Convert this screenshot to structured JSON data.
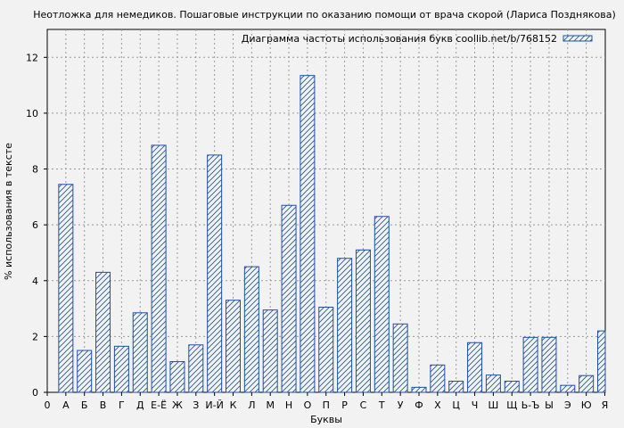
{
  "chart_data": {
    "type": "bar",
    "title": "Неотложка для немедиков. Пошаговые инструкции по оказанию помощи от врача скорой (Лариса Позднякова)",
    "legend": "Диаграмма частоты использования букв coollib.net/b/768152",
    "legend_position": "top-right",
    "xlabel": "Буквы",
    "ylabel": "% использования в тексте",
    "x_first_tick": "0",
    "categories": [
      "А",
      "Б",
      "В",
      "Г",
      "Д",
      "Е-Ё",
      "Ж",
      "З",
      "И-Й",
      "К",
      "Л",
      "М",
      "Н",
      "О",
      "П",
      "Р",
      "С",
      "Т",
      "У",
      "Ф",
      "Х",
      "Ц",
      "Ч",
      "Ш",
      "Щ",
      "Ь-Ъ",
      "Ы",
      "Э",
      "Ю",
      "Я"
    ],
    "values": [
      7.45,
      1.5,
      4.3,
      1.65,
      2.85,
      8.85,
      1.1,
      1.7,
      8.5,
      3.3,
      4.5,
      2.95,
      6.7,
      11.35,
      3.05,
      4.8,
      5.1,
      6.3,
      2.45,
      0.18,
      0.98,
      0.4,
      1.78,
      0.62,
      0.4,
      1.97,
      1.97,
      0.25,
      0.6,
      2.2
    ],
    "ylim": [
      0,
      13
    ],
    "yticks": [
      0,
      2,
      4,
      6,
      8,
      10,
      12
    ],
    "grid": true,
    "bar_color": "#1f4fa8",
    "background": "#f2f2f2"
  }
}
